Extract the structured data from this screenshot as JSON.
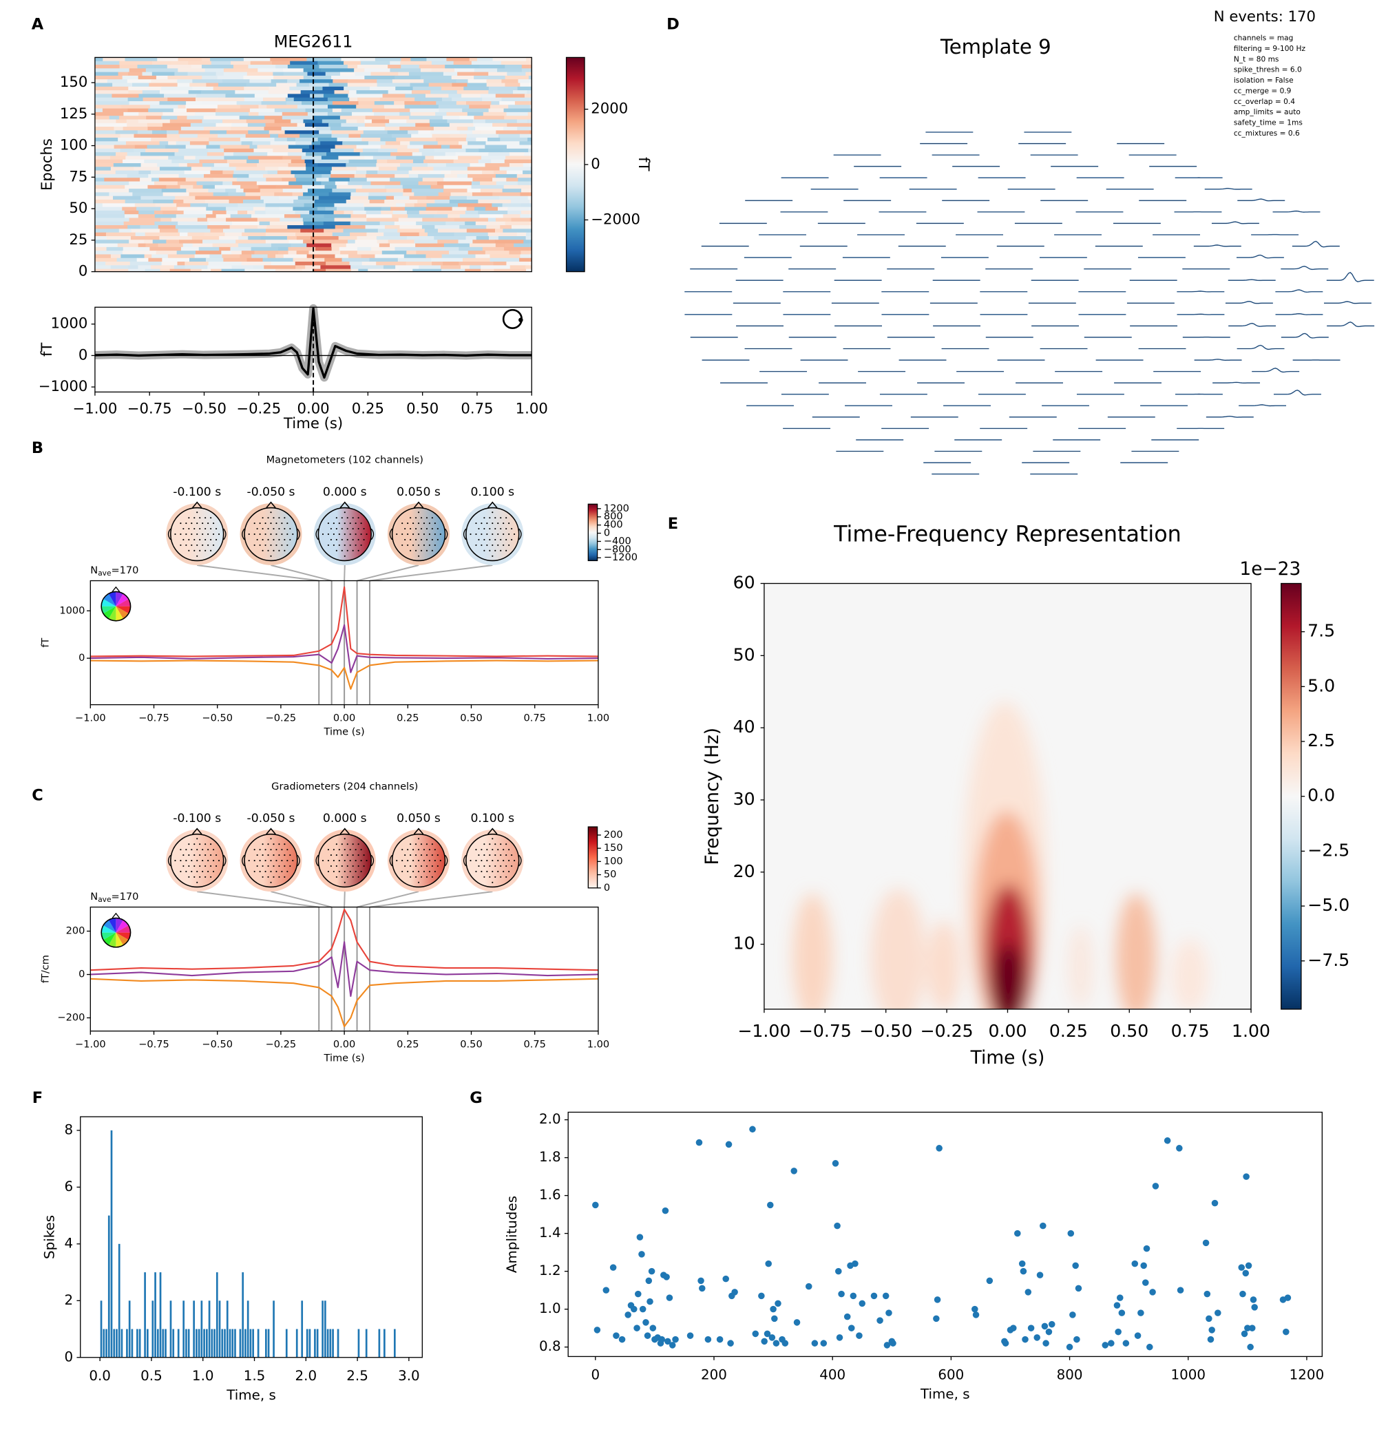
{
  "chart_data": [
    {
      "type": "heatmap",
      "panel": "A",
      "title": "MEG2611",
      "ylabel": "Epochs",
      "xlim": [
        -1,
        1
      ],
      "ylim": [
        0,
        170
      ],
      "yticks": [
        0,
        25,
        50,
        75,
        100,
        125,
        150
      ],
      "vline": 0,
      "colorbar": {
        "cmap": "RdBu_r",
        "label": "fT",
        "lim": [
          -3870,
          3870
        ],
        "ticks": [
          {
            "value": -2000,
            "label": "−2000"
          },
          0,
          2000
        ]
      }
    },
    {
      "type": "line",
      "ylabel": "fT",
      "xlabel": "Time (s)",
      "color": "#000000",
      "vline": 0,
      "hline": 0,
      "x": [
        -1,
        -0.9,
        -0.8,
        -0.7,
        -0.6,
        -0.5,
        -0.4,
        -0.3,
        -0.2,
        -0.15,
        -0.1,
        -0.075,
        -0.05,
        -0.025,
        0,
        0.025,
        0.05,
        0.075,
        0.1,
        0.15,
        0.2,
        0.3,
        0.4,
        0.5,
        0.6,
        0.7,
        0.8,
        0.9,
        1
      ],
      "values": [
        10,
        30,
        0,
        20,
        40,
        20,
        30,
        40,
        60,
        100,
        250,
        100,
        -400,
        -600,
        1500,
        -200,
        -700,
        -200,
        300,
        150,
        60,
        20,
        30,
        10,
        20,
        0,
        30,
        10,
        10
      ],
      "xlim": [
        -1,
        1
      ],
      "ylim": [
        -1160,
        1536
      ],
      "xticks": [
        {
          "value": -1,
          "label": "−1.00"
        },
        {
          "value": -0.75,
          "label": "−0.75"
        },
        {
          "value": -0.5,
          "label": "−0.50"
        },
        {
          "value": -0.25,
          "label": "−0.25"
        },
        {
          "value": 0,
          "label": "0.00"
        },
        0.25,
        {
          "value": 0.5,
          "label": "0.50"
        },
        0.75,
        {
          "value": 1,
          "label": "1.00"
        }
      ],
      "yticks": [
        {
          "value": -1000,
          "label": "−1000"
        },
        0,
        1000
      ]
    },
    {
      "type": "butterfly",
      "panel": "B",
      "title": "Magnetometers (102 channels)",
      "nave": {
        "base": "N",
        "sub": "ave",
        "rest": "=170"
      },
      "ylabel": "fT",
      "xlabel": "Time (s)",
      "x": [
        -1,
        -0.8,
        -0.6,
        -0.4,
        -0.2,
        -0.1,
        -0.05,
        -0.025,
        0,
        0.025,
        0.05,
        0.1,
        0.2,
        0.4,
        0.6,
        0.8,
        1
      ],
      "series": [
        {
          "color": "#f28a1f",
          "values": [
            -50,
            -60,
            -50,
            -60,
            -80,
            -150,
            -250,
            -400,
            -200,
            -650,
            -300,
            -150,
            -80,
            -60,
            -50,
            -60,
            -50
          ]
        },
        {
          "color": "#8e3b9b",
          "values": [
            0,
            20,
            -10,
            15,
            30,
            80,
            -100,
            200,
            700,
            -300,
            50,
            20,
            10,
            0,
            10,
            -10,
            0
          ]
        },
        {
          "color": "#e8433a",
          "values": [
            40,
            50,
            40,
            50,
            60,
            150,
            300,
            600,
            1500,
            200,
            100,
            80,
            60,
            50,
            40,
            50,
            40
          ]
        }
      ],
      "xlim": [
        -1,
        1
      ],
      "ylim": [
        -980,
        1635
      ],
      "xticks": [
        {
          "value": -1,
          "label": "−1.00"
        },
        {
          "value": -0.75,
          "label": "−0.75"
        },
        {
          "value": -0.5,
          "label": "−0.50"
        },
        {
          "value": -0.25,
          "label": "−0.25"
        },
        {
          "value": 0,
          "label": "0.00"
        },
        0.25,
        {
          "value": 0.5,
          "label": "0.50"
        },
        0.75,
        {
          "value": 1,
          "label": "1.00"
        }
      ],
      "yticks": [
        0,
        1000
      ],
      "topomaps": [
        {
          "value": -0.1,
          "label": "-0.100 s"
        },
        {
          "value": -0.05,
          "label": "-0.050 s"
        },
        {
          "value": 0,
          "label": "0.000 s"
        },
        {
          "value": 0.05,
          "label": "0.050 s"
        },
        {
          "value": 0.1,
          "label": "0.100 s"
        }
      ],
      "colorbar": {
        "cmap": "RdBu_r",
        "lim": [
          -1340,
          1420
        ],
        "ticks": [
          {
            "value": -1200,
            "label": "−1200"
          },
          {
            "value": -800,
            "label": "−800"
          },
          {
            "value": -400,
            "label": "−400"
          },
          0,
          400,
          800,
          1200
        ]
      }
    },
    {
      "type": "butterfly",
      "panel": "C",
      "title": "Gradiometers (204 channels)",
      "nave": {
        "base": "N",
        "sub": "ave",
        "rest": "=170"
      },
      "ylabel": "fT/cm",
      "xlabel": "Time (s)",
      "x": [
        -1,
        -0.8,
        -0.6,
        -0.4,
        -0.2,
        -0.1,
        -0.05,
        -0.025,
        0,
        0.025,
        0.05,
        0.1,
        0.2,
        0.4,
        0.6,
        0.8,
        1
      ],
      "series": [
        {
          "color": "#f28a1f",
          "values": [
            -20,
            -30,
            -25,
            -30,
            -40,
            -60,
            -100,
            -150,
            -240,
            -200,
            -120,
            -50,
            -40,
            -30,
            -30,
            -25,
            -20
          ]
        },
        {
          "color": "#8e3b9b",
          "values": [
            0,
            10,
            -5,
            10,
            15,
            40,
            80,
            -60,
            150,
            -100,
            60,
            20,
            10,
            0,
            5,
            -5,
            0
          ]
        },
        {
          "color": "#e8433a",
          "values": [
            20,
            30,
            25,
            30,
            40,
            60,
            120,
            200,
            300,
            250,
            150,
            60,
            40,
            30,
            30,
            25,
            20
          ]
        }
      ],
      "xlim": [
        -1,
        1
      ],
      "ylim": [
        -261,
        311
      ],
      "xticks": [
        {
          "value": -1,
          "label": "−1.00"
        },
        {
          "value": -0.75,
          "label": "−0.75"
        },
        {
          "value": -0.5,
          "label": "−0.50"
        },
        {
          "value": -0.25,
          "label": "−0.25"
        },
        {
          "value": 0,
          "label": "0.00"
        },
        0.25,
        {
          "value": 0.5,
          "label": "0.50"
        },
        0.75,
        {
          "value": 1,
          "label": "1.00"
        }
      ],
      "yticks": [
        {
          "value": -200,
          "label": "−200"
        },
        0,
        200
      ],
      "topomaps": [
        {
          "value": -0.1,
          "label": "-0.100 s"
        },
        {
          "value": -0.05,
          "label": "-0.050 s"
        },
        {
          "value": 0,
          "label": "0.000 s"
        },
        {
          "value": 0.05,
          "label": "0.050 s"
        },
        {
          "value": 0.1,
          "label": "0.100 s"
        }
      ],
      "colorbar": {
        "cmap": "Reds",
        "lim": [
          0,
          231
        ],
        "ticks": [
          0,
          50,
          100,
          150,
          200
        ]
      }
    },
    {
      "type": "template",
      "panel": "D",
      "title": "Template 9",
      "annotation": "N events: 170",
      "parameters": [
        "channels = mag",
        "filtering = 9-100 Hz",
        "N_t = 80 ms",
        "spike_thresh = 6.0",
        "isolation = False",
        "cc_merge = 0.9",
        "cc_overlap = 0.4",
        "amp_limits = auto",
        "safety_time = 1ms",
        "cc_mixtures = 0.6"
      ]
    },
    {
      "type": "tfr",
      "panel": "E",
      "title": "Time-Frequency Representation",
      "xlabel": "Time (s)",
      "ylabel": "Frequency (Hz)",
      "xlim": [
        -1,
        1
      ],
      "ylim": [
        1,
        60
      ],
      "xticks": [
        {
          "value": -1,
          "label": "−1.00"
        },
        {
          "value": -0.75,
          "label": "−0.75"
        },
        {
          "value": -0.5,
          "label": "−0.50"
        },
        {
          "value": -0.25,
          "label": "−0.25"
        },
        {
          "value": 0,
          "label": "0.00"
        },
        0.25,
        {
          "value": 0.5,
          "label": "0.50"
        },
        0.75,
        {
          "value": 1,
          "label": "1.00"
        }
      ],
      "yticks": [
        10,
        20,
        30,
        40,
        50,
        60
      ],
      "colorbar": {
        "cmap": "RdBu_r",
        "offset_label": "1e−23",
        "lim": [
          -9.7,
          9.7
        ],
        "ticks": [
          {
            "value": -7.5,
            "label": "−7.5"
          },
          {
            "value": -5,
            "label": "−5.0"
          },
          {
            "value": -2.5,
            "label": "−2.5"
          },
          {
            "value": 0,
            "label": "0.0"
          },
          2.5,
          {
            "value": 5,
            "label": "5.0"
          },
          7.5
        ]
      }
    },
    {
      "type": "histogram",
      "panel": "F",
      "xlabel": "Time, s",
      "ylabel": "Spikes",
      "color": "#1f77b4",
      "bins": [
        0,
        0.025,
        0.05,
        0.075,
        0.1,
        0.125,
        0.15,
        0.175,
        0.2,
        0.225,
        0.25,
        0.275,
        0.3,
        0.325,
        0.35,
        0.375,
        0.4,
        0.425,
        0.45,
        0.475,
        0.5,
        0.525,
        0.55,
        0.575,
        0.6,
        0.625,
        0.65,
        0.675,
        0.7,
        0.725,
        0.75,
        0.775,
        0.8,
        0.825,
        0.85,
        0.875,
        0.9,
        0.925,
        0.95,
        0.975,
        1,
        1.025,
        1.05,
        1.075,
        1.1,
        1.125,
        1.15,
        1.175,
        1.2,
        1.225,
        1.25,
        1.275,
        1.3,
        1.325,
        1.35,
        1.375,
        1.4,
        1.425,
        1.45,
        1.475,
        1.5,
        1.525,
        1.55,
        1.575,
        1.6,
        1.625,
        1.65,
        1.675,
        1.7,
        1.725,
        1.75,
        1.775,
        1.8,
        1.825,
        1.85,
        1.875,
        1.9,
        1.925,
        1.95,
        1.975,
        2,
        2.025,
        2.05,
        2.075,
        2.1,
        2.125,
        2.15,
        2.175,
        2.2,
        2.225,
        2.25,
        2.275,
        2.3,
        2.325,
        2.35,
        2.375,
        2.4,
        2.425,
        2.45,
        2.475,
        2.5,
        2.525,
        2.55,
        2.575,
        2.6,
        2.625,
        2.65,
        2.675,
        2.7,
        2.725,
        2.75,
        2.775,
        2.8,
        2.825,
        2.85,
        2.875,
        2.9
      ],
      "values": [
        2,
        1,
        1,
        5,
        8,
        1,
        1,
        4,
        1,
        0,
        1,
        2,
        1,
        0,
        1,
        1,
        0,
        3,
        1,
        0,
        2,
        3,
        1,
        3,
        1,
        1,
        0,
        2,
        1,
        0,
        1,
        0,
        2,
        1,
        1,
        0,
        2,
        1,
        1,
        2,
        1,
        1,
        2,
        1,
        1,
        3,
        2,
        1,
        1,
        2,
        1,
        1,
        1,
        0,
        1,
        3,
        1,
        2,
        1,
        1,
        0,
        1,
        0,
        0,
        1,
        1,
        0,
        2,
        0,
        0,
        0,
        0,
        1,
        0,
        0,
        0,
        1,
        0,
        2,
        0,
        1,
        1,
        0,
        1,
        1,
        0,
        2,
        2,
        1,
        1,
        1,
        0,
        1,
        0,
        0,
        0,
        0,
        0,
        0,
        0,
        1,
        0,
        0,
        1,
        0,
        0,
        0,
        0,
        1,
        0,
        1,
        0,
        0,
        0,
        1,
        0
      ],
      "xlim": [
        -0.19,
        3.13
      ],
      "ylim": [
        0,
        8.48
      ],
      "xticks": [
        {
          "value": 0,
          "label": "0.0"
        },
        0.5,
        {
          "value": 1,
          "label": "1.0"
        },
        1.5,
        {
          "value": 2,
          "label": "2.0"
        },
        2.5,
        {
          "value": 3,
          "label": "3.0"
        }
      ],
      "yticks": [
        0,
        2,
        4,
        6,
        8
      ]
    },
    {
      "type": "scatter",
      "panel": "G",
      "xlabel": "Time, s",
      "ylabel": "Amplitudes",
      "color": "#1f77b4",
      "x": [
        0,
        3,
        18,
        30,
        35,
        45,
        55,
        60,
        65,
        70,
        72,
        75,
        78,
        80,
        85,
        88,
        90,
        92,
        95,
        97,
        100,
        105,
        110,
        112,
        115,
        118,
        120,
        122,
        125,
        130,
        135,
        160,
        175,
        178,
        180,
        190,
        210,
        220,
        225,
        228,
        230,
        235,
        265,
        270,
        280,
        285,
        290,
        292,
        295,
        298,
        300,
        302,
        305,
        308,
        315,
        320,
        335,
        340,
        360,
        370,
        385,
        405,
        408,
        410,
        412,
        415,
        425,
        430,
        432,
        435,
        438,
        445,
        450,
        470,
        480,
        490,
        492,
        495,
        500,
        502,
        575,
        577,
        580,
        640,
        642,
        665,
        690,
        692,
        700,
        705,
        712,
        720,
        722,
        725,
        730,
        735,
        745,
        750,
        755,
        758,
        760,
        765,
        770,
        800,
        802,
        805,
        810,
        812,
        815,
        860,
        870,
        880,
        882,
        885,
        888,
        895,
        910,
        915,
        920,
        925,
        928,
        930,
        935,
        940,
        945,
        965,
        985,
        987,
        1030,
        1032,
        1035,
        1038,
        1040,
        1045,
        1050,
        1090,
        1092,
        1095,
        1097,
        1098,
        1100,
        1102,
        1105,
        1108,
        1110,
        1112,
        1160,
        1165,
        1168
      ],
      "values": [
        1.55,
        0.89,
        1.1,
        1.22,
        0.86,
        0.84,
        0.97,
        1.02,
        1.0,
        0.9,
        1.08,
        1.38,
        1.29,
        1.0,
        0.93,
        0.86,
        1.15,
        1.04,
        1.2,
        0.9,
        0.84,
        0.85,
        0.82,
        0.84,
        1.18,
        1.52,
        1.17,
        0.83,
        1.06,
        0.81,
        0.84,
        0.86,
        1.88,
        1.15,
        1.11,
        0.84,
        0.84,
        1.16,
        1.87,
        0.82,
        1.07,
        1.09,
        1.95,
        0.87,
        1.07,
        0.83,
        0.87,
        1.24,
        1.55,
        0.85,
        1.0,
        0.95,
        0.82,
        1.03,
        0.84,
        0.82,
        1.73,
        0.93,
        1.12,
        0.82,
        0.82,
        1.77,
        1.44,
        1.2,
        0.85,
        1.08,
        0.96,
        1.23,
        0.9,
        1.07,
        1.24,
        0.86,
        1.03,
        1.07,
        0.94,
        1.07,
        0.81,
        0.98,
        0.83,
        0.82,
        0.95,
        1.05,
        1.85,
        1.0,
        0.97,
        1.15,
        0.83,
        0.82,
        0.89,
        0.9,
        1.4,
        1.24,
        1.2,
        0.84,
        1.09,
        0.9,
        0.85,
        1.18,
        1.44,
        0.91,
        0.82,
        0.88,
        0.92,
        0.8,
        1.4,
        0.97,
        1.23,
        0.84,
        1.11,
        0.81,
        0.82,
        1.02,
        0.88,
        1.06,
        0.98,
        0.82,
        1.24,
        0.86,
        0.98,
        1.23,
        1.14,
        1.32,
        0.8,
        1.09,
        1.65,
        1.89,
        1.85,
        1.1,
        1.35,
        1.08,
        0.95,
        0.84,
        0.89,
        1.56,
        0.98,
        1.22,
        1.08,
        0.87,
        1.19,
        1.7,
        0.9,
        1.23,
        0.8,
        0.9,
        1.05,
        1.01,
        1.05,
        0.88,
        1.06
      ],
      "xlim": [
        -46,
        1226
      ],
      "ylim": [
        0.75,
        2.04
      ],
      "xticks": [
        0,
        200,
        400,
        600,
        800,
        1000,
        1200
      ],
      "yticks": [
        0.8,
        {
          "value": 1,
          "label": "1.0"
        },
        1.2,
        1.4,
        1.6,
        1.8,
        {
          "value": 2,
          "label": "2.0"
        }
      ]
    }
  ]
}
